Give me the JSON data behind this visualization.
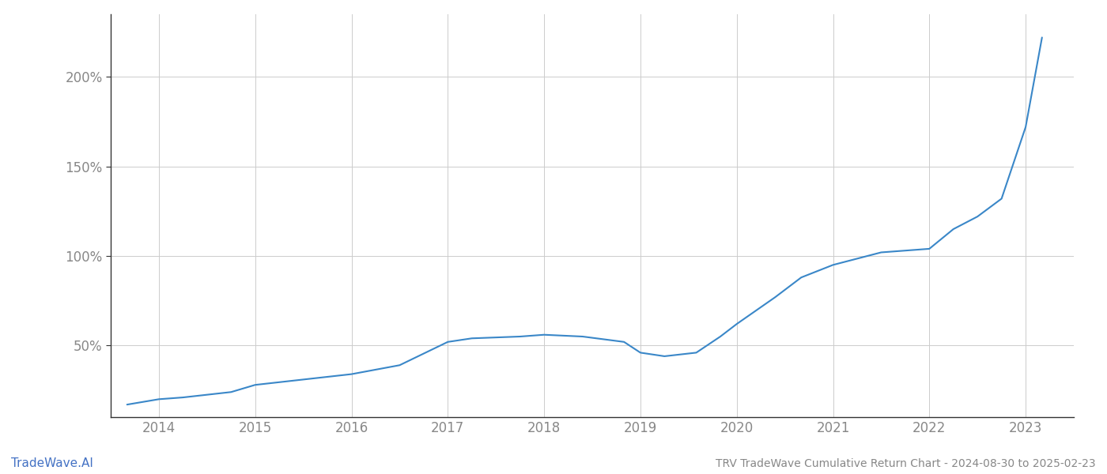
{
  "x_values": [
    2013.67,
    2014.0,
    2014.25,
    2014.75,
    2015.0,
    2015.5,
    2016.0,
    2016.5,
    2017.0,
    2017.25,
    2017.75,
    2018.0,
    2018.4,
    2018.83,
    2019.0,
    2019.25,
    2019.58,
    2019.83,
    2020.0,
    2020.4,
    2020.67,
    2021.0,
    2021.5,
    2022.0,
    2022.25,
    2022.5,
    2022.75,
    2023.0,
    2023.17
  ],
  "y_values": [
    17,
    20,
    21,
    24,
    28,
    31,
    34,
    39,
    52,
    54,
    55,
    56,
    55,
    52,
    46,
    44,
    46,
    55,
    62,
    77,
    88,
    95,
    102,
    104,
    115,
    122,
    132,
    172,
    222
  ],
  "line_color": "#3a87c8",
  "line_width": 1.5,
  "footer_left": "TradeWave.AI",
  "footer_right": "TRV TradeWave Cumulative Return Chart - 2024-08-30 to 2025-02-23",
  "yticks": [
    50,
    100,
    150,
    200
  ],
  "xticks": [
    2014,
    2015,
    2016,
    2017,
    2018,
    2019,
    2020,
    2021,
    2022,
    2023
  ],
  "xlim": [
    2013.5,
    2023.5
  ],
  "ylim": [
    10,
    235
  ],
  "background_color": "#ffffff",
  "grid_color": "#cccccc",
  "tick_label_color": "#888888",
  "footer_color_left": "#4472c4",
  "footer_color_right": "#888888",
  "left_spine_color": "#333333",
  "bottom_spine_color": "#333333"
}
